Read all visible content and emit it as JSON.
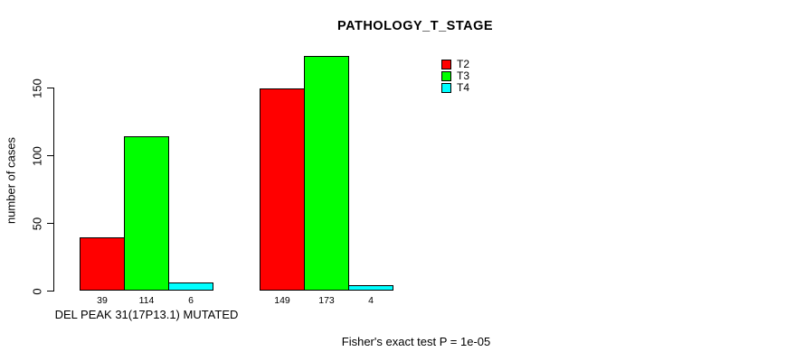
{
  "title": "PATHOLOGY_T_STAGE",
  "y_axis": {
    "label": "number of cases",
    "ticks": [
      0,
      50,
      100,
      150
    ]
  },
  "x_axis": {
    "group_labels": [
      "DEL PEAK 31(17P13.1) MUTATED",
      ""
    ]
  },
  "legend": {
    "items": [
      {
        "label": "T2",
        "color": "#ff0000"
      },
      {
        "label": "T3",
        "color": "#00ff00"
      },
      {
        "label": "T4",
        "color": "#00ffff"
      }
    ]
  },
  "footer": "Fisher's exact test P = 1e-05",
  "chart_data": {
    "type": "bar",
    "title": "PATHOLOGY_T_STAGE",
    "xlabel": "",
    "ylabel": "number of cases",
    "categories": [
      "DEL PEAK 31(17P13.1) MUTATED",
      ""
    ],
    "series": [
      {
        "name": "T2",
        "color": "#ff0000",
        "values": [
          39,
          149
        ]
      },
      {
        "name": "T3",
        "color": "#00ff00",
        "values": [
          114,
          173
        ]
      },
      {
        "name": "T4",
        "color": "#00ffff",
        "values": [
          6,
          4
        ]
      }
    ],
    "yticks": [
      0,
      50,
      100,
      150
    ],
    "ylim": [
      0,
      173
    ],
    "grid": false,
    "legend_position": "top-right",
    "value_labels_under_bars": true,
    "annotation": "Fisher's exact test P = 1e-05"
  }
}
